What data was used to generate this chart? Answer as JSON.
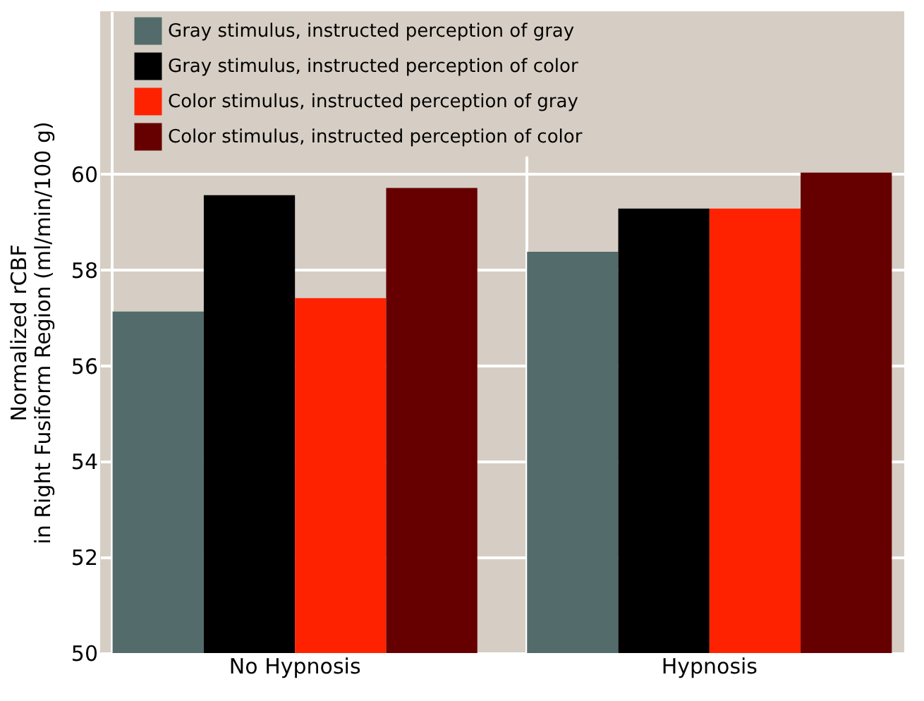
{
  "chart_data": {
    "type": "bar",
    "ylabel": "Normalized rCBF\nin Right Fusiform Region (ml/min/100 g)",
    "categories": [
      "No Hypnosis",
      "Hypnosis"
    ],
    "series": [
      {
        "name": "Gray stimulus, instructed perception of gray",
        "color": "#536b6b",
        "values": [
          57.13,
          58.38
        ]
      },
      {
        "name": "Gray stimulus, instructed perception of color",
        "color": "#000000",
        "values": [
          59.56,
          59.28
        ]
      },
      {
        "name": "Color stimulus, instructed perception of gray",
        "color": "#ff2200",
        "values": [
          57.41,
          59.28
        ]
      },
      {
        "name": "Color stimulus, instructed perception of color",
        "color": "#660000",
        "values": [
          59.71,
          60.03
        ]
      }
    ],
    "ylim": [
      50,
      63.4
    ],
    "yticks": [
      50,
      52,
      54,
      56,
      58,
      60
    ],
    "grid": true,
    "legend": "top"
  }
}
